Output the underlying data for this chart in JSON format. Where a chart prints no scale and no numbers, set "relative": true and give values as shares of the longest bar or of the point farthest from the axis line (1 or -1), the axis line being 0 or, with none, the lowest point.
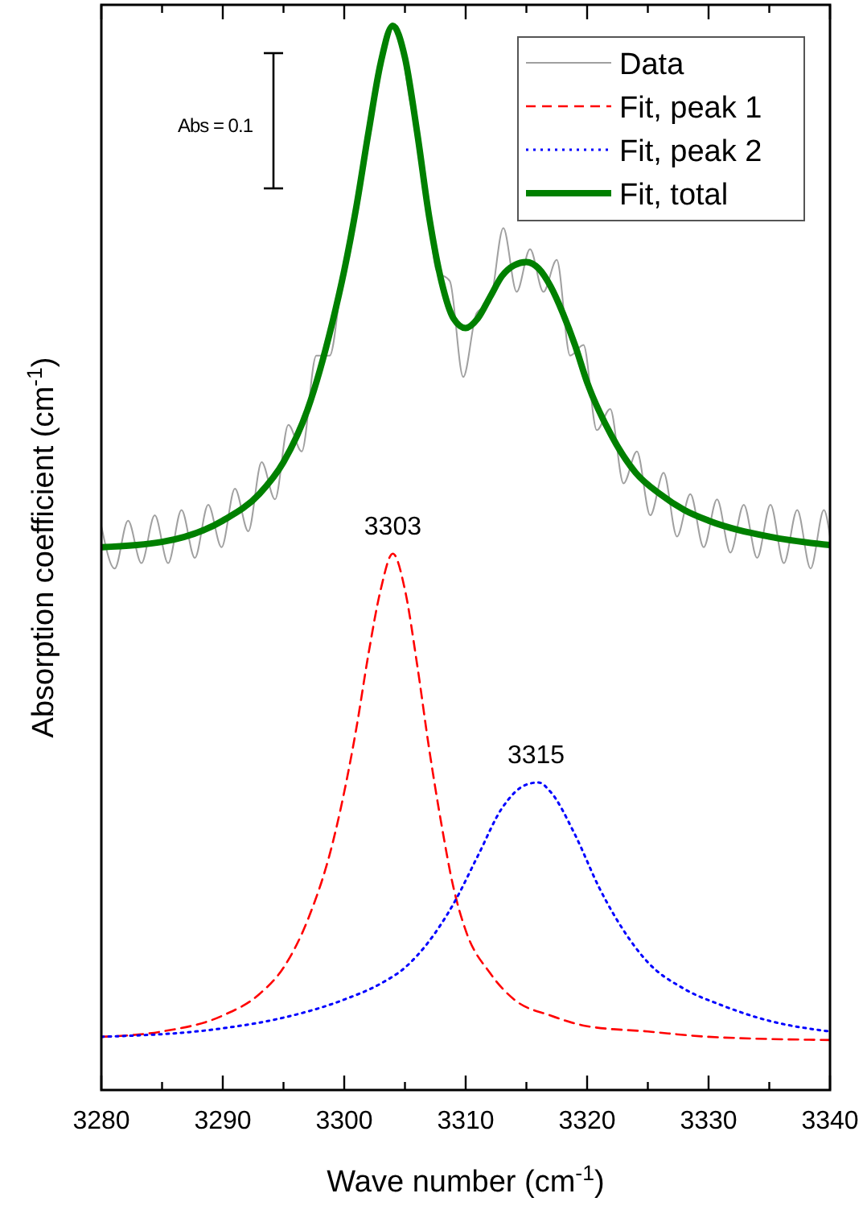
{
  "chart_data": {
    "type": "line",
    "relative": true,
    "xlabel": "Wave number (cm$^{-1}$)",
    "ylabel": "Absorption coefficient (cm$^{-1}$)",
    "xlim": [
      3280,
      3340
    ],
    "xticks": [
      3280,
      {
        "value": 3285,
        "label": null
      },
      3290,
      {
        "value": 3295,
        "label": null
      },
      3300,
      {
        "value": 3305,
        "label": null
      },
      3310,
      {
        "value": 3315,
        "label": null
      },
      3320,
      {
        "value": 3325,
        "label": null
      },
      3330,
      {
        "value": 3335,
        "label": null
      },
      3340
    ],
    "legend": "top right",
    "grid": false,
    "annotations": [
      "Abs = 0.1",
      {
        "text": "3303",
        "x": 3304,
        "y": 0.504
      },
      {
        "text": "3315",
        "x": 3315.8,
        "y": 0.289
      }
    ],
    "series": [
      {
        "name": "Data",
        "color": "#a0a0a0",
        "line_style": "solid",
        "x": [
          3280.0,
          3281.1,
          3282.2,
          3283.3,
          3284.4,
          3285.5,
          3286.6,
          3287.7,
          3288.8,
          3289.9,
          3291.0,
          3292.1,
          3293.2,
          3294.3,
          3295.4,
          3296.5,
          3297.7,
          3298.8,
          3299.9,
          3301.0,
          3302.1,
          3303.2,
          3304.3,
          3305.4,
          3306.5,
          3307.6,
          3308.7,
          3309.8,
          3310.9,
          3312.0,
          3313.1,
          3314.2,
          3315.3,
          3316.4,
          3317.5,
          3318.6,
          3319.7,
          3320.8,
          3321.9,
          3323.0,
          3324.1,
          3325.2,
          3326.3,
          3327.4,
          3328.5,
          3329.6,
          3330.7,
          3331.8,
          3332.9,
          3334.0,
          3335.1,
          3336.2,
          3337.3,
          3338.4,
          3339.5,
          3340
        ],
        "values": [
          0.53,
          0.49,
          0.535,
          0.495,
          0.54,
          0.495,
          0.545,
          0.5,
          0.55,
          0.51,
          0.565,
          0.525,
          0.59,
          0.555,
          0.625,
          0.6,
          0.69,
          0.69,
          0.77,
          0.83,
          0.91,
          0.98,
          1.0,
          0.93,
          0.87,
          0.77,
          0.76,
          0.67,
          0.73,
          0.74,
          0.81,
          0.75,
          0.79,
          0.75,
          0.78,
          0.69,
          0.7,
          0.62,
          0.64,
          0.57,
          0.6,
          0.54,
          0.58,
          0.52,
          0.56,
          0.51,
          0.555,
          0.505,
          0.55,
          0.5,
          0.55,
          0.495,
          0.545,
          0.49,
          0.545,
          0.52
        ]
      },
      {
        "name": "Fit, peak 1",
        "color": "#ff0000",
        "line_style": "dashed",
        "x": [
          3280,
          3285,
          3290,
          3293,
          3295,
          3297,
          3299,
          3300,
          3301,
          3302,
          3303,
          3304,
          3305,
          3306,
          3307,
          3308,
          3309,
          3310,
          3312,
          3314,
          3317,
          3320,
          3325,
          3330,
          3340
        ],
        "values": [
          0.05,
          0.055,
          0.07,
          0.09,
          0.115,
          0.16,
          0.23,
          0.28,
          0.34,
          0.41,
          0.47,
          0.504,
          0.47,
          0.4,
          0.32,
          0.25,
          0.19,
          0.15,
          0.11,
          0.085,
          0.07,
          0.06,
          0.055,
          0.05,
          0.047
        ]
      },
      {
        "name": "Fit, peak 2",
        "color": "#0000ff",
        "line_style": "dotted",
        "x": [
          3280,
          3290,
          3295,
          3300,
          3303,
          3305,
          3307,
          3309,
          3311,
          3313,
          3315,
          3316,
          3317,
          3319,
          3321,
          3323,
          3325,
          3328,
          3331,
          3335,
          3340
        ],
        "values": [
          0.05,
          0.058,
          0.068,
          0.085,
          0.1,
          0.115,
          0.14,
          0.175,
          0.22,
          0.265,
          0.287,
          0.289,
          0.28,
          0.24,
          0.19,
          0.15,
          0.12,
          0.095,
          0.08,
          0.065,
          0.055
        ]
      },
      {
        "name": "Fit, total",
        "color": "#008000",
        "line_style": "solid",
        "x": [
          3280,
          3285,
          3290,
          3293,
          3295,
          3297,
          3299,
          3300,
          3301,
          3302,
          3303,
          3304,
          3305,
          3306,
          3307,
          3308,
          3309,
          3310,
          3311,
          3312,
          3313,
          3314,
          3315,
          3316,
          3317,
          3318,
          3319,
          3320,
          3322,
          3324,
          3326,
          3328,
          3330,
          3335,
          3340
        ],
        "values": [
          0.51,
          0.515,
          0.535,
          0.56,
          0.59,
          0.64,
          0.72,
          0.77,
          0.83,
          0.9,
          0.965,
          1.0,
          0.97,
          0.9,
          0.82,
          0.76,
          0.725,
          0.716,
          0.725,
          0.745,
          0.765,
          0.775,
          0.778,
          0.772,
          0.755,
          0.73,
          0.7,
          0.665,
          0.615,
          0.58,
          0.56,
          0.545,
          0.535,
          0.52,
          0.512
        ]
      }
    ]
  }
}
